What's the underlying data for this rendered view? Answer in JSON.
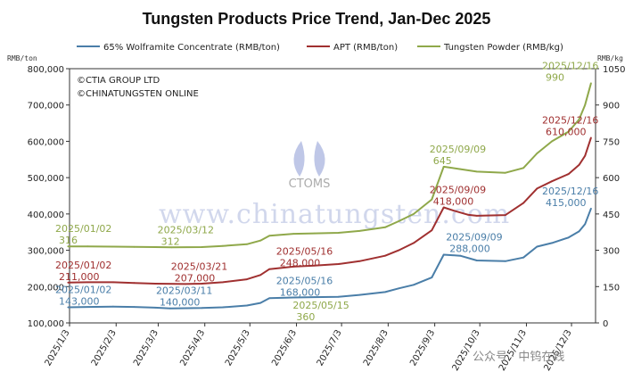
{
  "chart_data": {
    "type": "line",
    "title": "Tungsten Products Price Trend, Jan-Dec 2025",
    "y_left_unit": "RMB/ton",
    "y_right_unit": "RMB/kg",
    "y_left_range": [
      100000,
      800000
    ],
    "y_right_range": [
      0,
      1050
    ],
    "y_left_ticks": [
      "100,000",
      "200,000",
      "300,000",
      "400,000",
      "500,000",
      "600,000",
      "700,000",
      "800,000"
    ],
    "y_right_ticks": [
      "0",
      "150",
      "300",
      "450",
      "600",
      "750",
      "900",
      "1050"
    ],
    "x_ticks": [
      "2025/1/3",
      "2025/2/3",
      "2025/3/3",
      "2025/4/3",
      "2025/5/3",
      "2025/6/3",
      "2025/7/3",
      "2025/8/3",
      "2025/9/3",
      "2025/10/3",
      "2025/11/3",
      "2025/12/3"
    ],
    "grid": false,
    "legend_position": "top",
    "copyright": [
      "©CTIA GROUP LTD",
      "©CHINATUNGSTEN ONLINE"
    ],
    "watermark": "www.chinatungsten.com",
    "logo_text": "CTOMS",
    "corner_watermark": "公众号 · 中钨在线",
    "series": [
      {
        "name": "65% Wolframite Concentrate (RMB/ton)",
        "axis": "left",
        "color": "#4a7ea8",
        "points": [
          [
            "2025/1/2",
            143000
          ],
          [
            "2025/1/15",
            144000
          ],
          [
            "2025/2/1",
            145000
          ],
          [
            "2025/2/15",
            144000
          ],
          [
            "2025/3/1",
            142000
          ],
          [
            "2025/3/11",
            140000
          ],
          [
            "2025/4/1",
            141000
          ],
          [
            "2025/4/15",
            143000
          ],
          [
            "2025/5/1",
            148000
          ],
          [
            "2025/5/10",
            155000
          ],
          [
            "2025/5/16",
            168000
          ],
          [
            "2025/6/1",
            170000
          ],
          [
            "2025/6/15",
            171000
          ],
          [
            "2025/7/1",
            172000
          ],
          [
            "2025/7/15",
            177000
          ],
          [
            "2025/8/1",
            185000
          ],
          [
            "2025/8/10",
            195000
          ],
          [
            "2025/8/20",
            205000
          ],
          [
            "2025/9/1",
            225000
          ],
          [
            "2025/9/9",
            288000
          ],
          [
            "2025/9/20",
            285000
          ],
          [
            "2025/10/1",
            272000
          ],
          [
            "2025/10/20",
            270000
          ],
          [
            "2025/11/1",
            280000
          ],
          [
            "2025/11/10",
            310000
          ],
          [
            "2025/11/20",
            320000
          ],
          [
            "2025/12/1",
            335000
          ],
          [
            "2025/12/8",
            352000
          ],
          [
            "2025/12/12",
            372000
          ],
          [
            "2025/12/16",
            415000
          ]
        ]
      },
      {
        "name": "APT (RMB/ton)",
        "axis": "left",
        "color": "#a03030",
        "points": [
          [
            "2025/1/2",
            211000
          ],
          [
            "2025/1/15",
            212000
          ],
          [
            "2025/2/1",
            212000
          ],
          [
            "2025/2/15",
            210000
          ],
          [
            "2025/3/1",
            208000
          ],
          [
            "2025/3/21",
            207000
          ],
          [
            "2025/4/1",
            208000
          ],
          [
            "2025/4/15",
            212000
          ],
          [
            "2025/5/1",
            220000
          ],
          [
            "2025/5/10",
            232000
          ],
          [
            "2025/5/16",
            248000
          ],
          [
            "2025/6/1",
            255000
          ],
          [
            "2025/6/15",
            258000
          ],
          [
            "2025/7/1",
            262000
          ],
          [
            "2025/7/15",
            270000
          ],
          [
            "2025/8/1",
            285000
          ],
          [
            "2025/8/10",
            300000
          ],
          [
            "2025/8/20",
            320000
          ],
          [
            "2025/9/1",
            355000
          ],
          [
            "2025/9/9",
            418000
          ],
          [
            "2025/9/15",
            410000
          ],
          [
            "2025/9/25",
            398000
          ],
          [
            "2025/10/1",
            395000
          ],
          [
            "2025/10/20",
            397000
          ],
          [
            "2025/11/1",
            430000
          ],
          [
            "2025/11/10",
            470000
          ],
          [
            "2025/11/20",
            490000
          ],
          [
            "2025/12/1",
            510000
          ],
          [
            "2025/12/8",
            535000
          ],
          [
            "2025/12/12",
            560000
          ],
          [
            "2025/12/16",
            610000
          ]
        ]
      },
      {
        "name": "Tungsten Powder (RMB/kg)",
        "axis": "right",
        "color": "#8fa84a",
        "points": [
          [
            "2025/1/2",
            316
          ],
          [
            "2025/1/15",
            316
          ],
          [
            "2025/2/1",
            315
          ],
          [
            "2025/2/15",
            314
          ],
          [
            "2025/3/1",
            313
          ],
          [
            "2025/3/12",
            312
          ],
          [
            "2025/4/1",
            313
          ],
          [
            "2025/4/15",
            318
          ],
          [
            "2025/5/1",
            325
          ],
          [
            "2025/5/10",
            340
          ],
          [
            "2025/5/16",
            360
          ],
          [
            "2025/6/1",
            368
          ],
          [
            "2025/6/15",
            370
          ],
          [
            "2025/7/1",
            372
          ],
          [
            "2025/7/15",
            380
          ],
          [
            "2025/8/1",
            395
          ],
          [
            "2025/8/10",
            420
          ],
          [
            "2025/8/20",
            450
          ],
          [
            "2025/9/1",
            510
          ],
          [
            "2025/9/9",
            645
          ],
          [
            "2025/9/20",
            635
          ],
          [
            "2025/10/1",
            625
          ],
          [
            "2025/10/20",
            620
          ],
          [
            "2025/11/1",
            640
          ],
          [
            "2025/11/10",
            700
          ],
          [
            "2025/11/20",
            750
          ],
          [
            "2025/12/1",
            790
          ],
          [
            "2025/12/8",
            840
          ],
          [
            "2025/12/12",
            900
          ],
          [
            "2025/12/16",
            990
          ]
        ]
      }
    ],
    "annotations": [
      {
        "series": 2,
        "date": "2025/01/02",
        "value": "316",
        "label_x": "2025/1/1",
        "color": "#8fa84a"
      },
      {
        "series": 2,
        "date": "2025/03/12",
        "value": "312",
        "label_x": "2025/3/12",
        "color": "#8fa84a"
      },
      {
        "series": 2,
        "date": "2025/05/15",
        "value": "360",
        "label_x": "2025/6/10",
        "color": "#8fa84a"
      },
      {
        "series": 2,
        "date": "2025/09/09",
        "value": "645",
        "label_x": "2025/9/9",
        "color": "#8fa84a"
      },
      {
        "series": 2,
        "date": "2025/12/16",
        "value": "990",
        "label_x": "2025/12/1",
        "color": "#8fa84a"
      },
      {
        "series": 1,
        "date": "2025/01/02",
        "value": "211,000",
        "label_x": "2025/1/1",
        "color": "#a03030"
      },
      {
        "series": 1,
        "date": "2025/03/21",
        "value": "207,000",
        "label_x": "2025/3/21",
        "color": "#a03030"
      },
      {
        "series": 1,
        "date": "2025/05/16",
        "value": "248,000",
        "label_x": "2025/5/30",
        "color": "#a03030"
      },
      {
        "series": 1,
        "date": "2025/09/09",
        "value": "418,000",
        "label_x": "2025/9/9",
        "color": "#a03030"
      },
      {
        "series": 1,
        "date": "2025/12/16",
        "value": "610,000",
        "label_x": "2025/12/1",
        "color": "#a03030"
      },
      {
        "series": 0,
        "date": "2025/01/02",
        "value": "143,000",
        "label_x": "2025/1/1",
        "color": "#4a7ea8"
      },
      {
        "series": 0,
        "date": "2025/03/11",
        "value": "140,000",
        "label_x": "2025/3/11",
        "color": "#4a7ea8"
      },
      {
        "series": 0,
        "date": "2025/05/16",
        "value": "168,000",
        "label_x": "2025/5/30",
        "color": "#4a7ea8"
      },
      {
        "series": 0,
        "date": "2025/09/09",
        "value": "288,000",
        "label_x": "2025/9/20",
        "color": "#4a7ea8"
      },
      {
        "series": 0,
        "date": "2025/12/16",
        "value": "415,000",
        "label_x": "2025/12/1",
        "color": "#4a7ea8"
      }
    ]
  }
}
